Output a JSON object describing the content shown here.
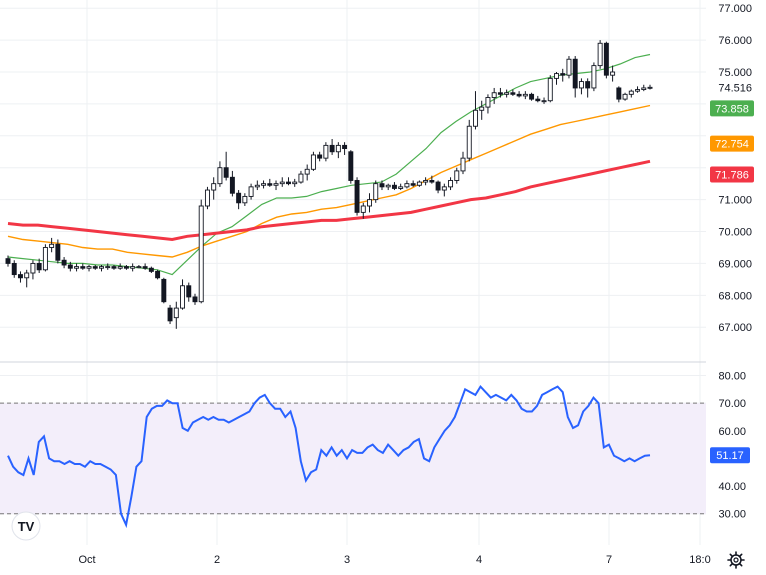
{
  "chart_data": [
    {
      "type": "candlestick",
      "panel": "price",
      "ylim": [
        66.6,
        77.1
      ],
      "y_ticks": [
        "77.000",
        "76.000",
        "75.000",
        "74.516",
        "73.858",
        "72.754",
        "71.786",
        "71.000",
        "70.000",
        "69.000",
        "68.000",
        "67.000"
      ],
      "y_tick_values": [
        77,
        76,
        75,
        74.516,
        73.858,
        72.754,
        71.786,
        71,
        70,
        69,
        68,
        67
      ],
      "last_price_label": "74.516",
      "candles": [
        [
          69.15,
          69.25,
          68.9,
          69.0
        ],
        [
          69.0,
          69.1,
          68.55,
          68.65
        ],
        [
          68.65,
          68.75,
          68.4,
          68.55
        ],
        [
          68.55,
          68.8,
          68.25,
          68.7
        ],
        [
          68.7,
          69.1,
          68.5,
          69.0
        ],
        [
          69.0,
          69.15,
          68.7,
          68.8
        ],
        [
          68.8,
          69.6,
          68.75,
          69.5
        ],
        [
          69.5,
          69.8,
          69.35,
          69.6
        ],
        [
          69.6,
          69.75,
          69.0,
          69.1
        ],
        [
          69.1,
          69.2,
          68.85,
          68.95
        ],
        [
          68.95,
          69.05,
          68.75,
          68.85
        ],
        [
          68.85,
          69.0,
          68.75,
          68.9
        ],
        [
          68.9,
          69.0,
          68.8,
          68.85
        ],
        [
          68.85,
          68.95,
          68.75,
          68.9
        ],
        [
          68.9,
          68.95,
          68.8,
          68.85
        ],
        [
          68.85,
          68.95,
          68.75,
          68.9
        ],
        [
          68.9,
          69.0,
          68.8,
          68.9
        ],
        [
          68.9,
          68.95,
          68.8,
          68.85
        ],
        [
          68.85,
          69.0,
          68.8,
          68.9
        ],
        [
          68.9,
          68.95,
          68.8,
          68.85
        ],
        [
          68.85,
          69.0,
          68.75,
          68.9
        ],
        [
          68.9,
          68.95,
          68.85,
          68.9
        ],
        [
          68.9,
          69.0,
          68.8,
          68.85
        ],
        [
          68.85,
          68.9,
          68.7,
          68.75
        ],
        [
          68.75,
          68.8,
          68.5,
          68.55
        ],
        [
          68.5,
          68.55,
          67.75,
          67.8
        ],
        [
          67.6,
          67.7,
          67.1,
          67.2
        ],
        [
          67.3,
          67.8,
          66.95,
          67.6
        ],
        [
          67.6,
          68.5,
          67.55,
          68.3
        ],
        [
          68.3,
          68.4,
          67.8,
          67.95
        ],
        [
          67.95,
          68.05,
          67.7,
          67.8
        ],
        [
          67.8,
          71.0,
          67.75,
          70.8
        ],
        [
          70.8,
          71.4,
          70.7,
          71.3
        ],
        [
          71.3,
          71.7,
          71.0,
          71.5
        ],
        [
          71.5,
          72.2,
          71.4,
          72.0
        ],
        [
          72.0,
          72.5,
          71.6,
          71.7
        ],
        [
          71.7,
          71.9,
          71.1,
          71.2
        ],
        [
          71.2,
          71.3,
          70.7,
          70.9
        ],
        [
          70.9,
          71.2,
          70.8,
          71.1
        ],
        [
          71.1,
          71.5,
          71.0,
          71.4
        ],
        [
          71.4,
          71.6,
          71.3,
          71.45
        ],
        [
          71.45,
          71.6,
          71.35,
          71.5
        ],
        [
          71.5,
          71.65,
          71.4,
          71.45
        ],
        [
          71.45,
          71.6,
          71.3,
          71.5
        ],
        [
          71.5,
          71.7,
          71.4,
          71.55
        ],
        [
          71.55,
          71.7,
          71.45,
          71.5
        ],
        [
          71.5,
          71.65,
          71.4,
          71.55
        ],
        [
          71.55,
          71.9,
          71.5,
          71.8
        ],
        [
          71.8,
          72.1,
          71.6,
          71.95
        ],
        [
          71.95,
          72.5,
          71.9,
          72.4
        ],
        [
          72.4,
          72.5,
          72.2,
          72.3
        ],
        [
          72.3,
          72.8,
          72.2,
          72.7
        ],
        [
          72.7,
          72.9,
          72.4,
          72.5
        ],
        [
          72.5,
          72.8,
          72.3,
          72.7
        ],
        [
          72.7,
          72.8,
          72.4,
          72.6
        ],
        [
          72.5,
          72.55,
          71.5,
          71.6
        ],
        [
          71.6,
          71.7,
          70.5,
          70.6
        ],
        [
          70.6,
          70.9,
          70.4,
          70.8
        ],
        [
          70.8,
          71.2,
          70.6,
          71.0
        ],
        [
          71.0,
          71.6,
          70.9,
          71.5
        ],
        [
          71.5,
          71.6,
          71.3,
          71.4
        ],
        [
          71.4,
          71.5,
          71.3,
          71.45
        ],
        [
          71.45,
          71.55,
          71.3,
          71.35
        ],
        [
          71.35,
          71.5,
          71.3,
          71.4
        ],
        [
          71.4,
          71.6,
          71.35,
          71.5
        ],
        [
          71.5,
          71.6,
          71.4,
          71.45
        ],
        [
          71.45,
          71.6,
          71.4,
          71.55
        ],
        [
          71.55,
          71.7,
          71.45,
          71.6
        ],
        [
          71.6,
          71.75,
          71.5,
          71.55
        ],
        [
          71.55,
          71.6,
          71.2,
          71.3
        ],
        [
          71.3,
          71.5,
          71.1,
          71.4
        ],
        [
          71.4,
          71.7,
          71.3,
          71.6
        ],
        [
          71.6,
          72.0,
          71.5,
          71.9
        ],
        [
          71.9,
          72.5,
          71.8,
          72.3
        ],
        [
          72.3,
          73.5,
          72.2,
          73.3
        ],
        [
          73.3,
          74.4,
          73.2,
          73.8
        ],
        [
          73.8,
          74.1,
          73.5,
          73.9
        ],
        [
          73.9,
          74.3,
          73.7,
          74.2
        ],
        [
          74.2,
          74.5,
          74.0,
          74.35
        ],
        [
          74.35,
          74.5,
          74.2,
          74.3
        ],
        [
          74.3,
          74.45,
          74.2,
          74.35
        ],
        [
          74.35,
          74.45,
          74.25,
          74.3
        ],
        [
          74.3,
          74.4,
          74.2,
          74.25
        ],
        [
          74.25,
          74.4,
          74.15,
          74.3
        ],
        [
          74.3,
          74.35,
          74.1,
          74.15
        ],
        [
          74.15,
          74.25,
          74.05,
          74.1
        ],
        [
          74.1,
          74.2,
          74.0,
          74.1
        ],
        [
          74.1,
          74.9,
          74.05,
          74.8
        ],
        [
          74.8,
          75.0,
          74.6,
          74.95
        ],
        [
          74.95,
          75.1,
          74.7,
          74.9
        ],
        [
          74.9,
          75.5,
          74.8,
          75.4
        ],
        [
          75.4,
          75.5,
          74.2,
          74.5
        ],
        [
          74.5,
          74.8,
          74.3,
          74.7
        ],
        [
          74.7,
          74.8,
          74.2,
          74.5
        ],
        [
          74.5,
          75.3,
          74.4,
          75.2
        ],
        [
          75.2,
          76.0,
          75.1,
          75.9
        ],
        [
          75.9,
          75.95,
          74.8,
          74.9
        ],
        [
          74.9,
          75.2,
          74.7,
          75.0
        ],
        [
          74.5,
          74.55,
          74.05,
          74.15
        ],
        [
          74.15,
          74.35,
          74.1,
          74.3
        ],
        [
          74.3,
          74.45,
          74.2,
          74.4
        ],
        [
          74.4,
          74.55,
          74.35,
          74.45
        ],
        [
          74.45,
          74.6,
          74.4,
          74.5
        ],
        [
          74.5,
          74.6,
          74.45,
          74.52
        ]
      ],
      "series": [
        {
          "name": "",
          "values": [
            69.2,
            69.15,
            69.1,
            69.05,
            69.0,
            69.0,
            68.95,
            68.95,
            68.9,
            68.85,
            68.8,
            68.65,
            69.1,
            69.55,
            69.95,
            70.15,
            70.5,
            70.85,
            71.05,
            71.05,
            71.1,
            71.25,
            71.35,
            71.45,
            71.5,
            71.55,
            71.8,
            72.2,
            72.6,
            73.1,
            73.45,
            73.75,
            74.0,
            74.25,
            74.5,
            74.7,
            74.8,
            74.9,
            74.95,
            75.0,
            75.1,
            75.25,
            75.45,
            75.55
          ]
        },
        {
          "name": "",
          "values": [
            69.85,
            69.75,
            69.7,
            69.65,
            69.6,
            69.5,
            69.45,
            69.45,
            69.35,
            69.3,
            69.25,
            69.2,
            69.35,
            69.55,
            69.7,
            69.85,
            70.0,
            70.25,
            70.45,
            70.55,
            70.6,
            70.7,
            70.75,
            70.85,
            70.95,
            71.05,
            71.15,
            71.35,
            71.6,
            71.85,
            72.05,
            72.25,
            72.45,
            72.65,
            72.85,
            73.05,
            73.2,
            73.35,
            73.45,
            73.55,
            73.65,
            73.75,
            73.85,
            73.95
          ]
        },
        {
          "name": "",
          "values": [
            70.25,
            70.2,
            70.2,
            70.15,
            70.1,
            70.05,
            70.0,
            69.95,
            69.9,
            69.85,
            69.8,
            69.75,
            69.85,
            69.9,
            69.95,
            70.0,
            70.05,
            70.15,
            70.2,
            70.25,
            70.3,
            70.35,
            70.35,
            70.4,
            70.45,
            70.5,
            70.55,
            70.6,
            70.7,
            70.8,
            70.9,
            71.0,
            71.05,
            71.15,
            71.25,
            71.4,
            71.5,
            71.6,
            71.7,
            71.8,
            71.9,
            72.0,
            72.1,
            72.2
          ]
        }
      ],
      "ma_labels": [
        "73.858",
        "72.754",
        "71.786"
      ],
      "ma_colors": [
        "#4caf50",
        "#ff9800",
        "#f23645"
      ]
    },
    {
      "type": "line",
      "panel": "rsi",
      "ylim": [
        27,
        82
      ],
      "y_ticks": [
        "80.00",
        "70.00",
        "60.00",
        "50.00",
        "40.00",
        "30.00"
      ],
      "y_tick_values": [
        80,
        70,
        60,
        50,
        40,
        30
      ],
      "band": [
        30,
        70
      ],
      "last_label": "51.17",
      "values": [
        51,
        47,
        45,
        44,
        50,
        44,
        56,
        58,
        50,
        49,
        49,
        48,
        49,
        48,
        48,
        47,
        49,
        48,
        48,
        47,
        46,
        44,
        30,
        26,
        36,
        47,
        49,
        65,
        68,
        69,
        69,
        71,
        70,
        70,
        61,
        60,
        63,
        64,
        65,
        64,
        65,
        64,
        64,
        63,
        64,
        65,
        66,
        67,
        70,
        72,
        73,
        70,
        68,
        68,
        65,
        67,
        61,
        49,
        42,
        45,
        46,
        53,
        51,
        54,
        51,
        53,
        50,
        53,
        52,
        52,
        54,
        55,
        53,
        52,
        55,
        53,
        51,
        53,
        54,
        56,
        57,
        50,
        49,
        54,
        57,
        60,
        62,
        65,
        70,
        75,
        74,
        73,
        76,
        74,
        72,
        73,
        72,
        71,
        73,
        71,
        68,
        67,
        67,
        69,
        73,
        74,
        75,
        76,
        74,
        65,
        61,
        62,
        67,
        69,
        72,
        70,
        54,
        55,
        51,
        50,
        49,
        50,
        49,
        50,
        51,
        51.17
      ]
    }
  ],
  "x_axis": {
    "labels": [
      "Oct",
      "2",
      "3",
      "4",
      "7",
      "18:0"
    ]
  },
  "logo_text": "TV",
  "colors": {
    "up_candle": "#ffffff",
    "down_candle": "#131722",
    "rsi_line": "#2962ff",
    "rsi_band_fill": "#f3eefa",
    "grid": "#eef0f3",
    "axis_text": "#131722"
  },
  "settings_icon": "gear-icon"
}
